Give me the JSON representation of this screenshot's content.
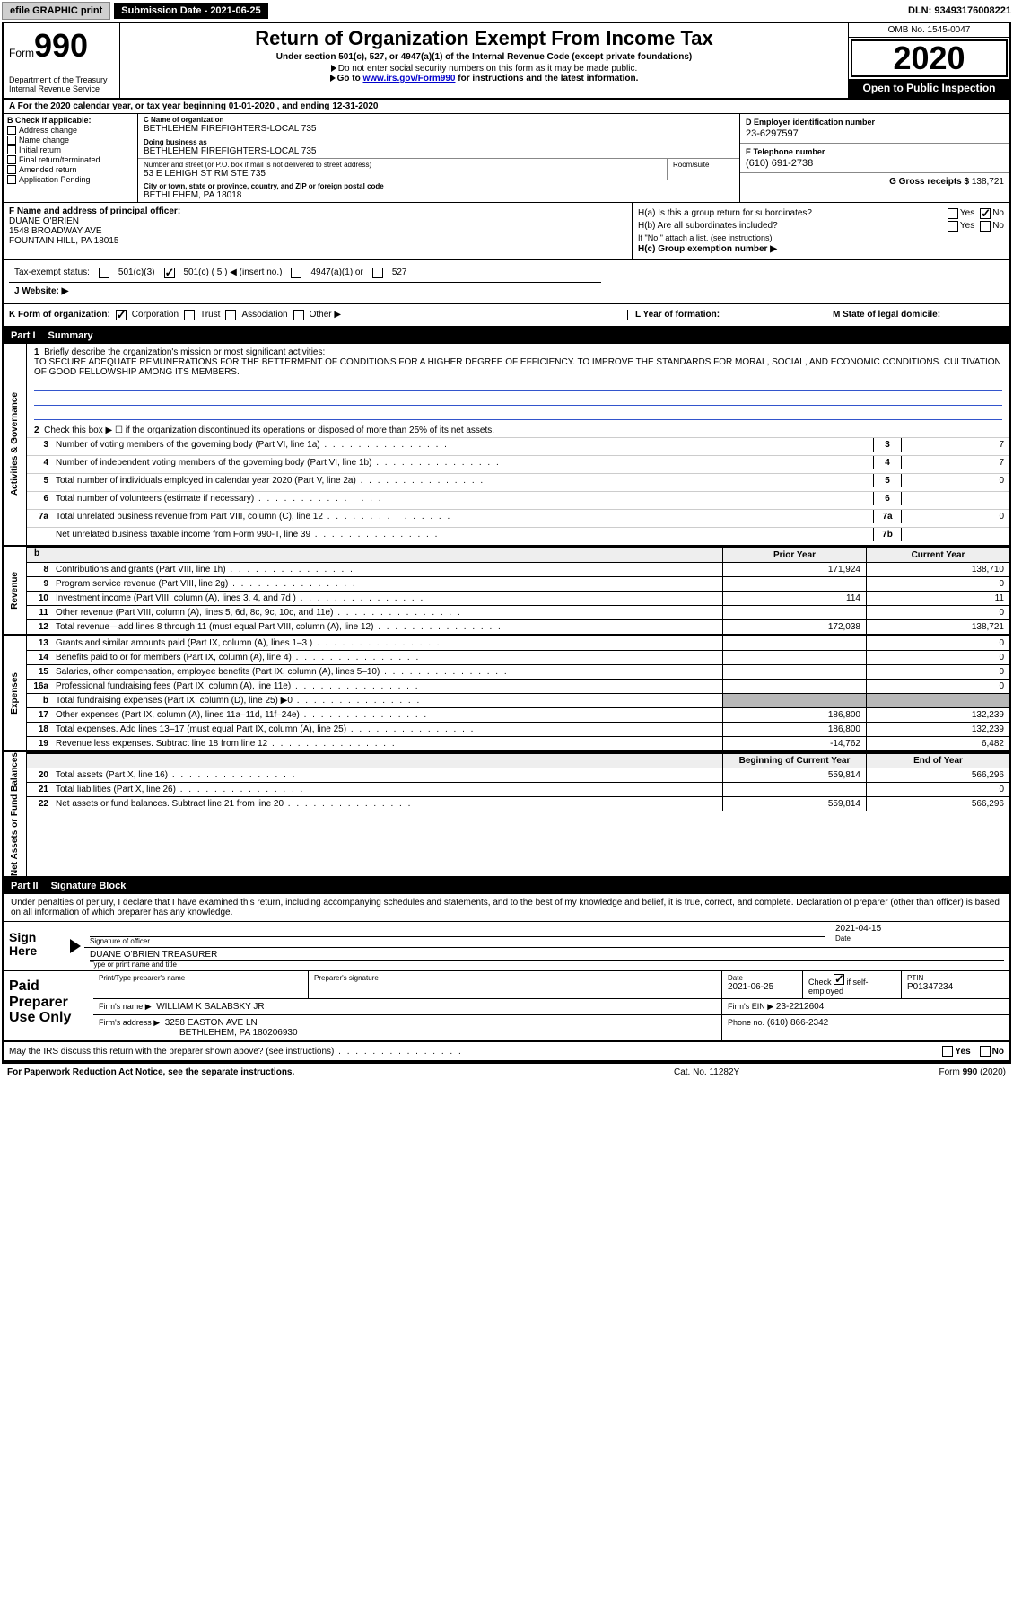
{
  "topbar": {
    "efile": "efile GRAPHIC print",
    "subdate_label": "Submission Date - 2021-06-25",
    "dln": "DLN: 93493176008221"
  },
  "header": {
    "form_label": "Form",
    "form_number": "990",
    "title": "Return of Organization Exempt From Income Tax",
    "subtitle": "Under section 501(c), 527, or 4947(a)(1) of the Internal Revenue Code (except private foundations)",
    "note1": "Do not enter social security numbers on this form as it may be made public.",
    "note2_pre": "Go to ",
    "note2_link": "www.irs.gov/Form990",
    "note2_post": " for instructions and the latest information.",
    "dept": "Department of the Treasury\nInternal Revenue Service",
    "omb": "OMB No. 1545-0047",
    "year": "2020",
    "open": "Open to Public Inspection"
  },
  "rowA": "A For the 2020 calendar year, or tax year beginning 01-01-2020   , and ending 12-31-2020",
  "boxB": {
    "title": "B Check if applicable:",
    "items": [
      "Address change",
      "Name change",
      "Initial return",
      "Final return/terminated",
      "Amended return",
      "Application Pending"
    ]
  },
  "boxC": {
    "name_lbl": "C Name of organization",
    "name": "BETHLEHEM FIREFIGHTERS-LOCAL 735",
    "dba_lbl": "Doing business as",
    "dba": "BETHLEHEM FIREFIGHTERS-LOCAL 735",
    "addr_lbl": "Number and street (or P.O. box if mail is not delivered to street address)",
    "addr": "53 E LEHIGH ST RM STE 735",
    "room_lbl": "Room/suite",
    "city_lbl": "City or town, state or province, country, and ZIP or foreign postal code",
    "city": "BETHLEHEM, PA  18018"
  },
  "boxD": {
    "lbl": "D Employer identification number",
    "val": "23-6297597"
  },
  "boxE": {
    "lbl": "E Telephone number",
    "val": "(610) 691-2738"
  },
  "boxG": {
    "lbl": "G Gross receipts $",
    "val": "138,721"
  },
  "boxF": {
    "lbl": "F  Name and address of principal officer:",
    "name": "DUANE O'BRIEN",
    "addr1": "1548 BROADWAY AVE",
    "addr2": "FOUNTAIN HILL, PA  18015"
  },
  "boxH": {
    "a": "H(a)  Is this a group return for subordinates?",
    "b": "H(b)  Are all subordinates included?",
    "bnote": "If \"No,\" attach a list. (see instructions)",
    "c": "H(c)  Group exemption number ▶",
    "yes": "Yes",
    "no": "No"
  },
  "taxrow": {
    "lbl": "Tax-exempt status:",
    "o1": "501(c)(3)",
    "o2": "501(c) ( 5 ) ◀ (insert no.)",
    "o3": "4947(a)(1) or",
    "o4": "527"
  },
  "jrow": {
    "lbl": "J   Website: ▶"
  },
  "krow": {
    "k": "K Form of organization:",
    "corp": "Corporation",
    "trust": "Trust",
    "assoc": "Association",
    "other": "Other ▶",
    "l": "L Year of formation:",
    "m": "M State of legal domicile:"
  },
  "part1": {
    "label": "Part I",
    "title": "Summary"
  },
  "govern": {
    "tab": "Activities & Governance",
    "l1": "Briefly describe the organization's mission or most significant activities:",
    "mission": "TO SECURE ADEQUATE REMUNERATIONS FOR THE BETTERMENT OF CONDITIONS FOR A HIGHER DEGREE OF EFFICIENCY. TO IMPROVE THE STANDARDS FOR MORAL, SOCIAL, AND ECONOMIC CONDITIONS. CULTIVATION OF GOOD FELLOWSHIP AMONG ITS MEMBERS.",
    "l2": "Check this box ▶ ☐  if the organization discontinued its operations or disposed of more than 25% of its net assets.",
    "l3": "Number of voting members of the governing body (Part VI, line 1a)",
    "l4": "Number of independent voting members of the governing body (Part VI, line 1b)",
    "l5": "Total number of individuals employed in calendar year 2020 (Part V, line 2a)",
    "l6": "Total number of volunteers (estimate if necessary)",
    "l7a": "Total unrelated business revenue from Part VIII, column (C), line 12",
    "l7b": "Net unrelated business taxable income from Form 990-T, line 39",
    "v3": "7",
    "v4": "7",
    "v5": "0",
    "v6": "",
    "v7a": "0",
    "v7b": ""
  },
  "hdrPY": "Prior Year",
  "hdrCY": "Current Year",
  "revenue": {
    "tab": "Revenue",
    "rows": [
      {
        "n": "8",
        "t": "Contributions and grants (Part VIII, line 1h)",
        "py": "171,924",
        "cy": "138,710"
      },
      {
        "n": "9",
        "t": "Program service revenue (Part VIII, line 2g)",
        "py": "",
        "cy": "0"
      },
      {
        "n": "10",
        "t": "Investment income (Part VIII, column (A), lines 3, 4, and 7d )",
        "py": "114",
        "cy": "11"
      },
      {
        "n": "11",
        "t": "Other revenue (Part VIII, column (A), lines 5, 6d, 8c, 9c, 10c, and 11e)",
        "py": "",
        "cy": "0"
      },
      {
        "n": "12",
        "t": "Total revenue—add lines 8 through 11 (must equal Part VIII, column (A), line 12)",
        "py": "172,038",
        "cy": "138,721"
      }
    ]
  },
  "expenses": {
    "tab": "Expenses",
    "rows": [
      {
        "n": "13",
        "t": "Grants and similar amounts paid (Part IX, column (A), lines 1–3 )",
        "py": "",
        "cy": "0"
      },
      {
        "n": "14",
        "t": "Benefits paid to or for members (Part IX, column (A), line 4)",
        "py": "",
        "cy": "0"
      },
      {
        "n": "15",
        "t": "Salaries, other compensation, employee benefits (Part IX, column (A), lines 5–10)",
        "py": "",
        "cy": "0"
      },
      {
        "n": "16a",
        "t": "Professional fundraising fees (Part IX, column (A), line 11e)",
        "py": "",
        "cy": "0"
      },
      {
        "n": "b",
        "t": "Total fundraising expenses (Part IX, column (D), line 25) ▶0",
        "py": "SHADE",
        "cy": "SHADE"
      },
      {
        "n": "17",
        "t": "Other expenses (Part IX, column (A), lines 11a–11d, 11f–24e)",
        "py": "186,800",
        "cy": "132,239"
      },
      {
        "n": "18",
        "t": "Total expenses. Add lines 13–17 (must equal Part IX, column (A), line 25)",
        "py": "186,800",
        "cy": "132,239"
      },
      {
        "n": "19",
        "t": "Revenue less expenses. Subtract line 18 from line 12",
        "py": "-14,762",
        "cy": "6,482"
      }
    ]
  },
  "netassets": {
    "tab": "Net Assets or Fund Balances",
    "hdrPY": "Beginning of Current Year",
    "hdrCY": "End of Year",
    "rows": [
      {
        "n": "20",
        "t": "Total assets (Part X, line 16)",
        "py": "559,814",
        "cy": "566,296"
      },
      {
        "n": "21",
        "t": "Total liabilities (Part X, line 26)",
        "py": "",
        "cy": "0"
      },
      {
        "n": "22",
        "t": "Net assets or fund balances. Subtract line 21 from line 20",
        "py": "559,814",
        "cy": "566,296"
      }
    ]
  },
  "part2": {
    "label": "Part II",
    "title": "Signature Block"
  },
  "sigintro": "Under penalties of perjury, I declare that I have examined this return, including accompanying schedules and statements, and to the best of my knowledge and belief, it is true, correct, and complete. Declaration of preparer (other than officer) is based on all information of which preparer has any knowledge.",
  "sign": {
    "label": "Sign Here",
    "sig_lbl": "Signature of officer",
    "date_lbl": "Date",
    "date": "2021-04-15",
    "name": "DUANE O'BRIEN  TREASURER",
    "name_lbl": "Type or print name and title"
  },
  "prep": {
    "label": "Paid Preparer Use Only",
    "h1": "Print/Type preparer's name",
    "h2": "Preparer's signature",
    "h3": "Date",
    "h3v": "2021-06-25",
    "h4a": "Check",
    "h4b": "if self-employed",
    "h5": "PTIN",
    "h5v": "P01347234",
    "firm_lbl": "Firm's name   ▶",
    "firm": "WILLIAM K SALABSKY JR",
    "ein_lbl": "Firm's EIN ▶",
    "ein": "23-2212604",
    "addr_lbl": "Firm's address ▶",
    "addr1": "3258 EASTON AVE LN",
    "addr2": "BETHLEHEM, PA  180206930",
    "phone_lbl": "Phone no.",
    "phone": "(610) 866-2342"
  },
  "discuss": "May the IRS discuss this return with the preparer shown above? (see instructions)",
  "footer": {
    "l": "For Paperwork Reduction Act Notice, see the separate instructions.",
    "m": "Cat. No. 11282Y",
    "r": "Form 990 (2020)"
  }
}
